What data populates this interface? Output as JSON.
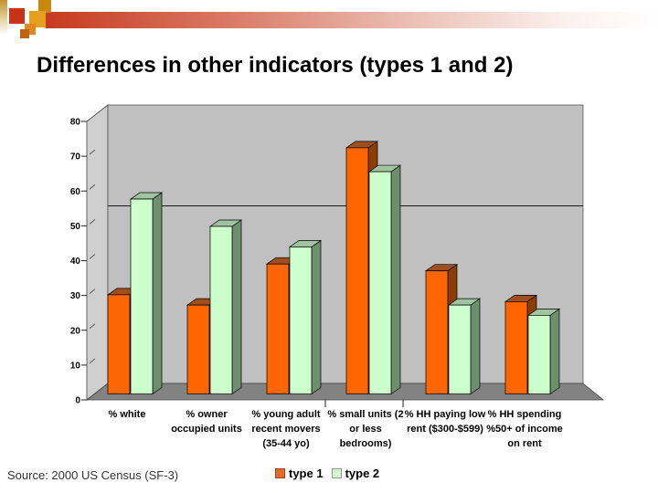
{
  "slide": {
    "title": "Differences in other indicators (types 1 and 2)",
    "source": "Source: 2000 US Census (SF-3)"
  },
  "chart_data": {
    "type": "bar",
    "categories": [
      "% white",
      "% owner occupied units",
      "% young adult recent movers (35-44 yo)",
      "% small units (2 or less bedrooms)",
      "% HH paying low rent ($300-$599)",
      "% HH spending %50+ of income on rent"
    ],
    "category_label_lines": [
      [
        "% white"
      ],
      [
        "% owner",
        "occupied units"
      ],
      [
        "% young adult",
        "recent movers",
        "(35-44 yo)"
      ],
      [
        "% small units (2",
        "or less",
        "bedrooms)"
      ],
      [
        "% HH paying low",
        "rent ($300-$599)"
      ],
      [
        "% HH spending",
        "%50+ of income",
        "on rent"
      ]
    ],
    "series": [
      {
        "name": "type 1",
        "values": [
          29,
          26,
          38,
          72,
          36,
          27
        ],
        "color_front": "#ff6600",
        "color_top": "#a0501e",
        "color_side": "#8c3d00",
        "legend_swatch": "#e8692a"
      },
      {
        "name": "type 2",
        "values": [
          57,
          49,
          43,
          65,
          26,
          23
        ],
        "color_front": "#ccffcc",
        "color_top": "#a0c4a0",
        "color_side": "#6e8f6e",
        "legend_swatch": "#d5f5d5"
      }
    ],
    "ylim": [
      0,
      80
    ],
    "yticks": [
      0,
      10,
      20,
      30,
      40,
      50,
      60,
      70,
      80
    ],
    "reference_line": 55,
    "grid": false,
    "legend_position": "bottom",
    "wall_colors": {
      "back": "#c0c0c0",
      "side": "#cfcfcf",
      "floor": "#828282"
    },
    "style": "3d-column"
  }
}
